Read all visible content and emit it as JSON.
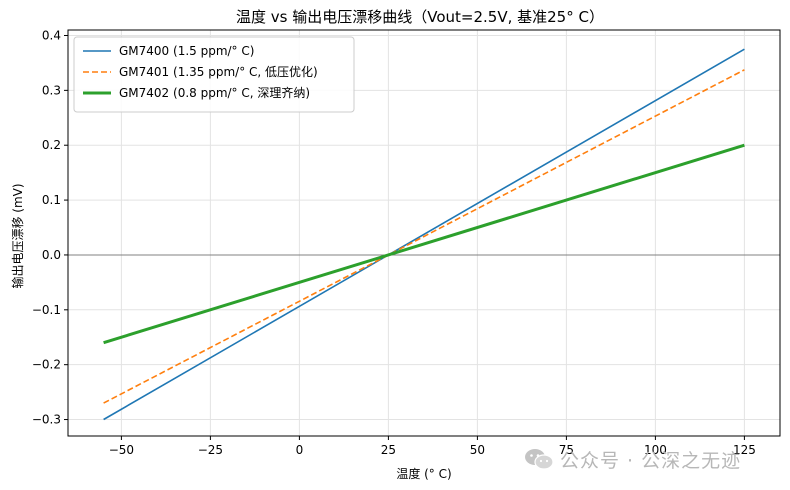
{
  "chart_data": {
    "type": "line",
    "title": "温度 vs 输出电压漂移曲线（Vout=2.5V, 基准25° C）",
    "xlabel": "温度 (° C)",
    "ylabel": "输出电压漂移 (mV)",
    "xlim": [
      -65,
      135
    ],
    "ylim": [
      -0.33,
      0.41
    ],
    "xticks": [
      -50,
      -25,
      0,
      25,
      50,
      75,
      100,
      125
    ],
    "xtick_labels": [
      "−50",
      "−25",
      "0",
      "25",
      "50",
      "75",
      "100",
      "125"
    ],
    "yticks": [
      -0.3,
      -0.2,
      -0.1,
      0.0,
      0.1,
      0.2,
      0.3,
      0.4
    ],
    "ytick_labels": [
      "−0.3",
      "−0.2",
      "−0.1",
      "0.0",
      "0.1",
      "0.2",
      "0.3",
      "0.4"
    ],
    "grid": true,
    "legend_position": "top-left",
    "reference_line_y": 0,
    "series": [
      {
        "name": "GM7400 (1.5 ppm/° C)",
        "x": [
          -55,
          125
        ],
        "y": [
          -0.3,
          0.375
        ],
        "color": "#1f77b4",
        "style": "solid",
        "width": "normal"
      },
      {
        "name": "GM7401 (1.35 ppm/° C, 低压优化)",
        "x": [
          -55,
          125
        ],
        "y": [
          -0.27,
          0.3375
        ],
        "color": "#ff7f0e",
        "style": "dashed",
        "width": "normal"
      },
      {
        "name": "GM7402 (0.8 ppm/° C, 深理齐纳)",
        "x": [
          -55,
          125
        ],
        "y": [
          -0.16,
          0.2
        ],
        "color": "#2ca02c",
        "style": "solid",
        "width": "thick"
      }
    ]
  },
  "watermark": {
    "text": "公众号 · 公深之无迹",
    "icon": "wechat-icon",
    "color": "#b7b7b7"
  }
}
